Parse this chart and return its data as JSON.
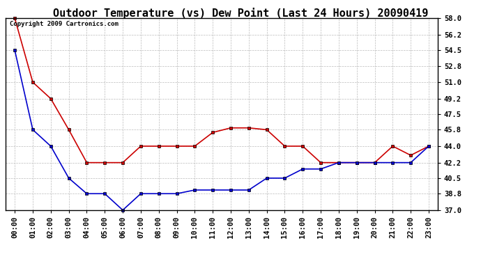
{
  "title": "Outdoor Temperature (vs) Dew Point (Last 24 Hours) 20090419",
  "copyright_text": "Copyright 2009 Cartronics.com",
  "x_labels": [
    "00:00",
    "01:00",
    "02:00",
    "03:00",
    "04:00",
    "05:00",
    "06:00",
    "07:00",
    "08:00",
    "09:00",
    "10:00",
    "11:00",
    "12:00",
    "13:00",
    "14:00",
    "15:00",
    "16:00",
    "17:00",
    "18:00",
    "19:00",
    "20:00",
    "21:00",
    "22:00",
    "23:00"
  ],
  "temp_color": "#cc0000",
  "dew_color": "#0000cc",
  "background_color": "#ffffff",
  "plot_bg_color": "#ffffff",
  "grid_color": "#bbbbbb",
  "ylim": [
    37.0,
    58.0
  ],
  "yticks": [
    37.0,
    38.8,
    40.5,
    42.2,
    44.0,
    45.8,
    47.5,
    49.2,
    51.0,
    52.8,
    54.5,
    56.2,
    58.0
  ],
  "temperature": [
    58.0,
    51.0,
    49.2,
    45.8,
    42.2,
    42.2,
    42.2,
    44.0,
    44.0,
    44.0,
    44.0,
    45.5,
    46.0,
    46.0,
    45.8,
    44.0,
    44.0,
    42.2,
    42.2,
    42.2,
    42.2,
    44.0,
    43.0,
    44.0
  ],
  "dew_point": [
    54.5,
    45.8,
    44.0,
    40.5,
    38.8,
    38.8,
    37.0,
    38.8,
    38.8,
    38.8,
    39.2,
    39.2,
    39.2,
    39.2,
    40.5,
    40.5,
    41.5,
    41.5,
    42.2,
    42.2,
    42.2,
    42.2,
    42.2,
    44.0
  ],
  "marker": "s",
  "marker_size": 3,
  "line_width": 1.2,
  "title_fontsize": 11,
  "tick_fontsize": 7.5,
  "copyright_fontsize": 6.5
}
